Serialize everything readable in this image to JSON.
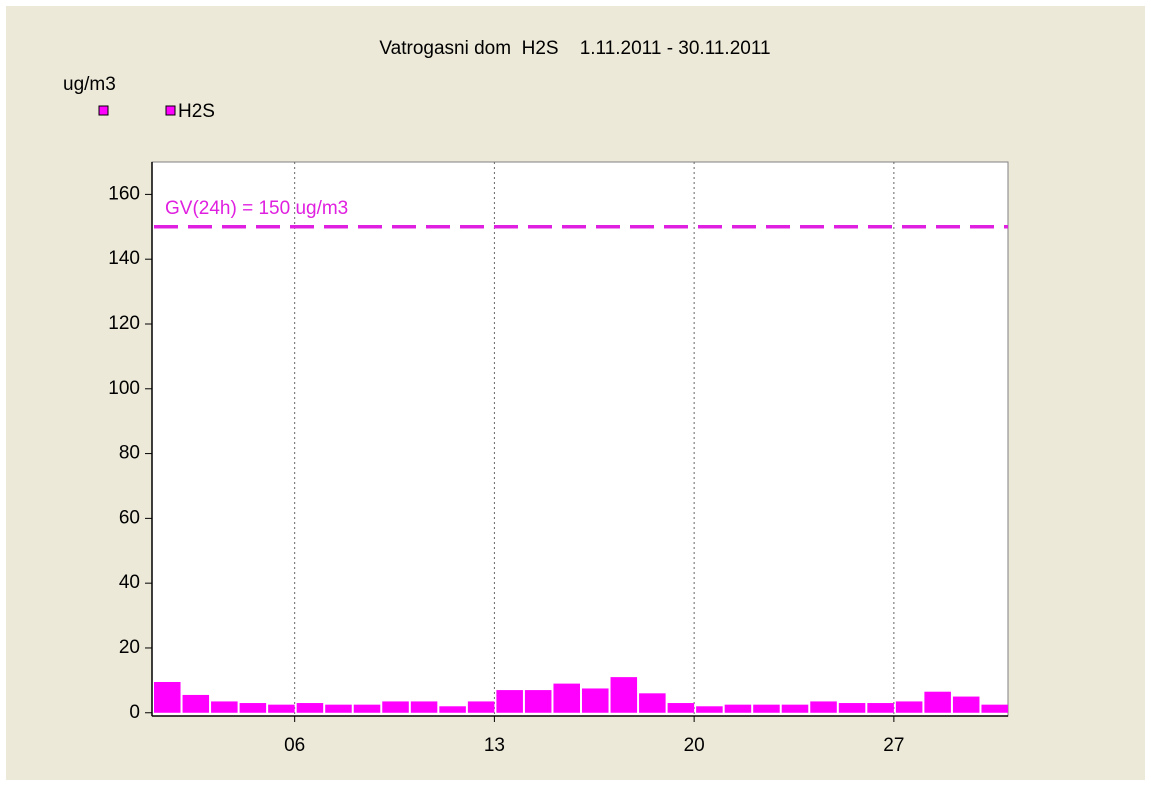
{
  "chart_data": {
    "type": "bar",
    "title": "Vatrogasni dom  H2S    1.11.2011 - 30.11.2011",
    "y_label": "ug/m3",
    "x": [
      1,
      2,
      3,
      4,
      5,
      6,
      7,
      8,
      9,
      10,
      11,
      12,
      13,
      14,
      15,
      16,
      17,
      18,
      19,
      20,
      21,
      22,
      23,
      24,
      25,
      26,
      27,
      28,
      29,
      30
    ],
    "series": [
      {
        "name": "H2S",
        "color": "#ff00ff",
        "values": [
          9.5,
          5.5,
          3.5,
          3,
          2.5,
          3,
          2.5,
          2.5,
          3.5,
          3.5,
          2,
          3.5,
          7,
          7,
          9,
          7.5,
          11,
          6,
          3,
          2,
          2.5,
          2.5,
          2.5,
          3.5,
          3,
          3,
          3.5,
          6.5,
          5,
          2.5
        ]
      }
    ],
    "xlim": [
      1,
      31
    ],
    "xticks": [
      {
        "value": 6,
        "label": "06"
      },
      {
        "value": 13,
        "label": "13"
      },
      {
        "value": 20,
        "label": "20"
      },
      {
        "value": 27,
        "label": "27"
      }
    ],
    "ylim": [
      -1,
      170
    ],
    "yticks": [
      0,
      20,
      40,
      60,
      80,
      100,
      120,
      140,
      160
    ],
    "reference_line": {
      "value": 150,
      "label": "GV(24h) = 150 ug/m3",
      "color": "#e020e0"
    },
    "x_grid": true
  }
}
